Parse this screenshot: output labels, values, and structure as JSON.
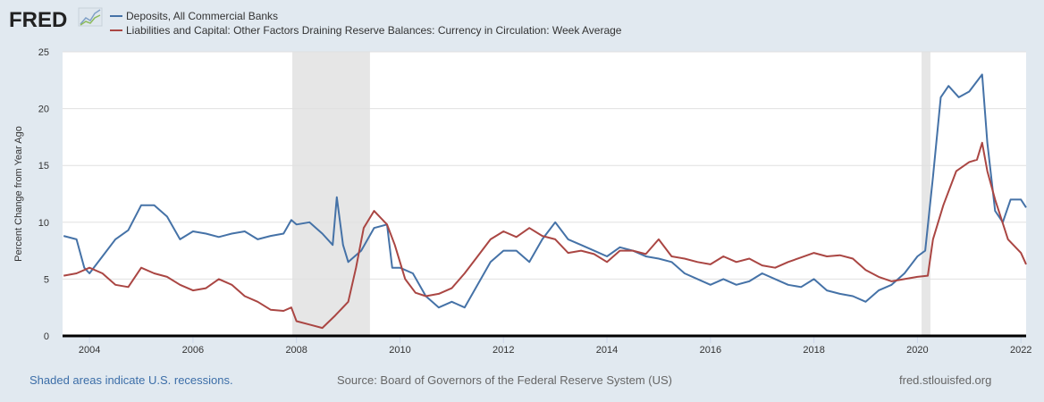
{
  "header": {
    "logo": "FRED"
  },
  "footer": {
    "recession_note": "Shaded areas indicate U.S. recessions.",
    "source": "Source: Board of Governors of the Federal Reserve System (US)",
    "site": "fred.stlouisfed.org"
  },
  "colors": {
    "blue": "#4572a7",
    "red": "#aa4643",
    "recession": "#e6e6e6",
    "background": "#e1e9f0"
  },
  "chart_data": {
    "type": "line",
    "title": "",
    "xlabel": "",
    "ylabel": "Percent Change from Year Ago",
    "xlim": [
      2003.48,
      2022.1
    ],
    "ylim": [
      0,
      25
    ],
    "grid": true,
    "legend_position": "top-left",
    "xticks": [
      "2004",
      "2006",
      "2008",
      "2010",
      "2012",
      "2014",
      "2016",
      "2018",
      "2020",
      "2022"
    ],
    "yticks": [
      "0",
      "5",
      "10",
      "15",
      "20",
      "25"
    ],
    "recessions": [
      [
        2007.92,
        2009.42
      ],
      [
        2020.08,
        2020.25
      ]
    ],
    "series": [
      {
        "name": "Deposits, All Commercial Banks",
        "color": "#4572a7",
        "x": [
          2003.5,
          2003.75,
          2003.9,
          2004.0,
          2004.25,
          2004.5,
          2004.75,
          2005.0,
          2005.25,
          2005.5,
          2005.75,
          2006.0,
          2006.25,
          2006.5,
          2006.75,
          2007.0,
          2007.25,
          2007.5,
          2007.75,
          2007.9,
          2008.0,
          2008.25,
          2008.5,
          2008.7,
          2008.78,
          2008.9,
          2009.0,
          2009.25,
          2009.5,
          2009.75,
          2009.85,
          2010.0,
          2010.25,
          2010.5,
          2010.75,
          2011.0,
          2011.25,
          2011.5,
          2011.75,
          2012.0,
          2012.25,
          2012.5,
          2012.75,
          2013.0,
          2013.25,
          2013.5,
          2013.75,
          2014.0,
          2014.25,
          2014.5,
          2014.75,
          2015.0,
          2015.25,
          2015.5,
          2015.75,
          2016.0,
          2016.25,
          2016.5,
          2016.75,
          2017.0,
          2017.25,
          2017.5,
          2017.75,
          2018.0,
          2018.25,
          2018.5,
          2018.75,
          2019.0,
          2019.25,
          2019.5,
          2019.75,
          2020.0,
          2020.15,
          2020.3,
          2020.45,
          2020.6,
          2020.8,
          2021.0,
          2021.25,
          2021.35,
          2021.5,
          2021.65,
          2021.8,
          2022.0,
          2022.1
        ],
        "values": [
          8.8,
          8.5,
          6.0,
          5.5,
          7.0,
          8.5,
          9.3,
          11.5,
          11.5,
          10.5,
          8.5,
          9.2,
          9.0,
          8.7,
          9.0,
          9.2,
          8.5,
          8.8,
          9.0,
          10.2,
          9.8,
          10.0,
          9.0,
          8.0,
          12.2,
          8.0,
          6.5,
          7.5,
          9.5,
          9.8,
          6.0,
          6.0,
          5.5,
          3.5,
          2.5,
          3.0,
          2.5,
          4.5,
          6.5,
          7.5,
          7.5,
          6.5,
          8.5,
          10.0,
          8.5,
          8.0,
          7.5,
          7.0,
          7.8,
          7.5,
          7.0,
          6.8,
          6.5,
          5.5,
          5.0,
          4.5,
          5.0,
          4.5,
          4.8,
          5.5,
          5.0,
          4.5,
          4.3,
          5.0,
          4.0,
          3.7,
          3.5,
          3.0,
          4.0,
          4.5,
          5.5,
          7.0,
          7.5,
          14.0,
          21.0,
          22.0,
          21.0,
          21.5,
          23.0,
          17.0,
          11.0,
          10.0,
          12.0,
          12.0,
          11.3
        ]
      },
      {
        "name": "Liabilities and Capital: Other Factors Draining Reserve Balances: Currency in Circulation: Week Average",
        "color": "#aa4643",
        "x": [
          2003.5,
          2003.75,
          2004.0,
          2004.25,
          2004.5,
          2004.75,
          2005.0,
          2005.25,
          2005.5,
          2005.75,
          2006.0,
          2006.25,
          2006.5,
          2006.75,
          2007.0,
          2007.25,
          2007.5,
          2007.75,
          2007.9,
          2008.0,
          2008.25,
          2008.5,
          2008.75,
          2009.0,
          2009.15,
          2009.3,
          2009.5,
          2009.75,
          2009.9,
          2010.1,
          2010.3,
          2010.5,
          2010.75,
          2011.0,
          2011.25,
          2011.5,
          2011.75,
          2012.0,
          2012.25,
          2012.5,
          2012.75,
          2013.0,
          2013.25,
          2013.5,
          2013.75,
          2014.0,
          2014.25,
          2014.5,
          2014.75,
          2015.0,
          2015.25,
          2015.5,
          2015.75,
          2016.0,
          2016.25,
          2016.5,
          2016.75,
          2017.0,
          2017.25,
          2017.5,
          2017.75,
          2018.0,
          2018.25,
          2018.5,
          2018.75,
          2019.0,
          2019.25,
          2019.5,
          2019.75,
          2020.0,
          2020.2,
          2020.3,
          2020.5,
          2020.75,
          2021.0,
          2021.15,
          2021.25,
          2021.35,
          2021.5,
          2021.75,
          2022.0,
          2022.1
        ],
        "values": [
          5.3,
          5.5,
          6.0,
          5.5,
          4.5,
          4.3,
          6.0,
          5.5,
          5.2,
          4.5,
          4.0,
          4.2,
          5.0,
          4.5,
          3.5,
          3.0,
          2.3,
          2.2,
          2.5,
          1.3,
          1.0,
          0.7,
          1.8,
          3.0,
          6.0,
          9.5,
          11.0,
          9.8,
          8.0,
          5.0,
          3.8,
          3.5,
          3.7,
          4.2,
          5.5,
          7.0,
          8.5,
          9.2,
          8.7,
          9.5,
          8.8,
          8.5,
          7.3,
          7.5,
          7.2,
          6.5,
          7.5,
          7.5,
          7.2,
          8.5,
          7.0,
          6.8,
          6.5,
          6.3,
          7.0,
          6.5,
          6.8,
          6.2,
          6.0,
          6.5,
          6.9,
          7.3,
          7.0,
          7.1,
          6.8,
          5.8,
          5.2,
          4.8,
          5.0,
          5.2,
          5.3,
          8.5,
          11.5,
          14.5,
          15.3,
          15.5,
          17.0,
          14.5,
          12.0,
          8.5,
          7.3,
          6.3
        ]
      }
    ]
  }
}
